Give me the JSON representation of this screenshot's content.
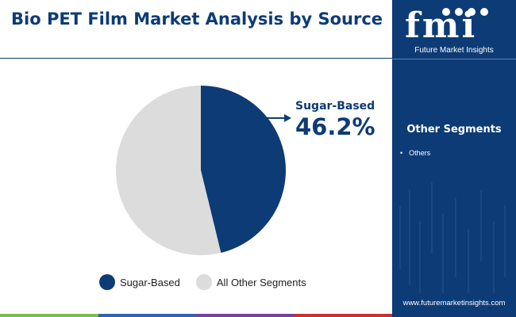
{
  "title": "Bio PET Film Market Analysis by Source",
  "chart_data": {
    "type": "pie",
    "title": "Bio PET Film Market Analysis by Source",
    "slices": [
      {
        "label": "Sugar-Based",
        "value": 46.2,
        "color": "#0d3b75"
      },
      {
        "label": "All Other Segments",
        "value": 53.8,
        "color": "#dcdcdc"
      }
    ],
    "callout": {
      "label": "Sugar-Based",
      "value_text": "46.2%"
    },
    "legend": [
      "Sugar-Based",
      "All Other Segments"
    ],
    "legend_position": "bottom"
  },
  "brand": {
    "logo": "fmi",
    "caption": "Future Market Insights",
    "url": "www.futuremarketinsights.com"
  },
  "sidebar": {
    "heading": "Other Segments",
    "items": [
      "Others"
    ]
  },
  "colors": {
    "primary": "#0d3b75",
    "grey": "#dcdcdc",
    "footer": [
      "#7cbf4a",
      "#2f63b3",
      "#7b3fa0",
      "#cf2e2e"
    ]
  }
}
